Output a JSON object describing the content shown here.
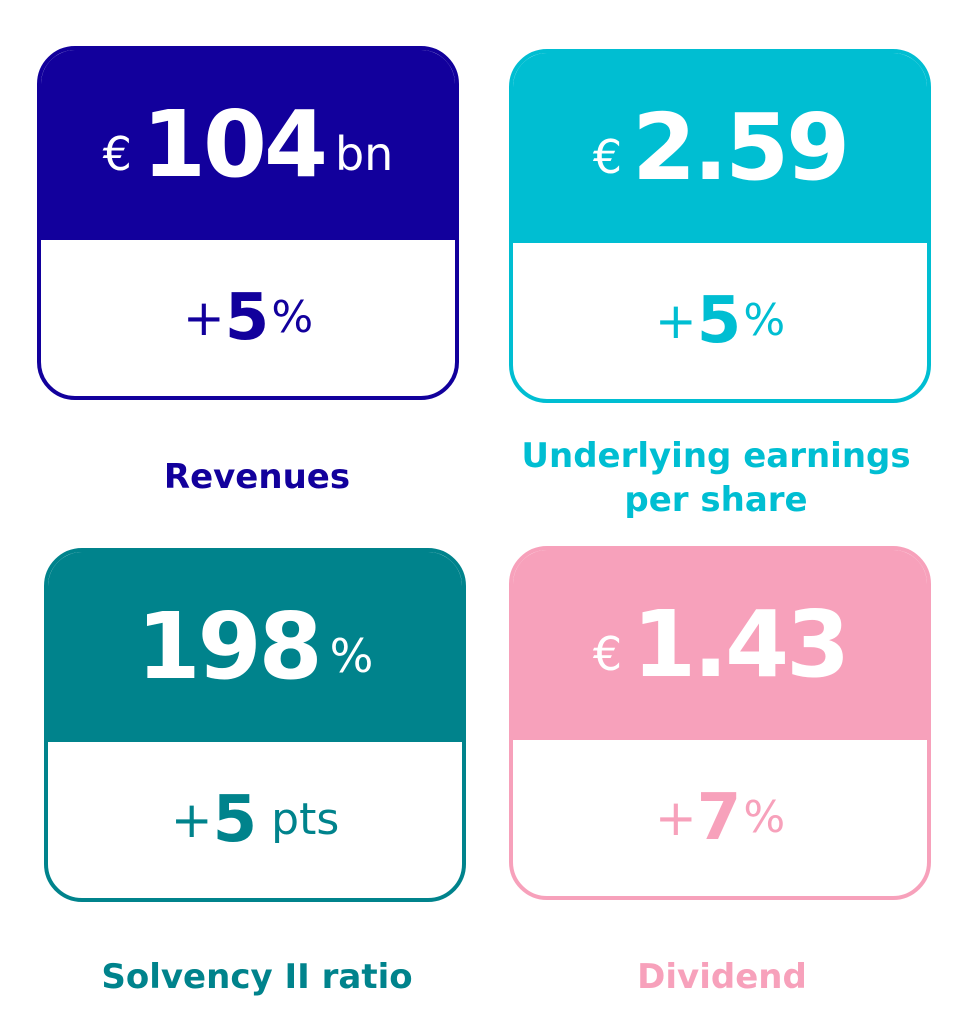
{
  "cards": [
    {
      "prefix": "€",
      "value": "104",
      "suffix": "bn",
      "change_sign": "+",
      "change_value": "5",
      "change_unit": "%",
      "label": "Revenues",
      "color": "#12009c"
    },
    {
      "prefix": "€",
      "value": "2.59",
      "suffix": "",
      "change_sign": "+",
      "change_value": "5",
      "change_unit": "%",
      "label_line1": "Underlying earnings",
      "label_line2": "per share",
      "color": "#00bed2"
    },
    {
      "prefix": "",
      "value": "198",
      "suffix": "%",
      "change_sign": "+",
      "change_value": "5",
      "change_unit": "pts",
      "label": "Solvency II ratio",
      "color": "#00838c"
    },
    {
      "prefix": "€",
      "value": "1.43",
      "suffix": "",
      "change_sign": "+",
      "change_value": "7",
      "change_unit": "%",
      "label": "Dividend",
      "color": "#f7a1bb"
    }
  ]
}
